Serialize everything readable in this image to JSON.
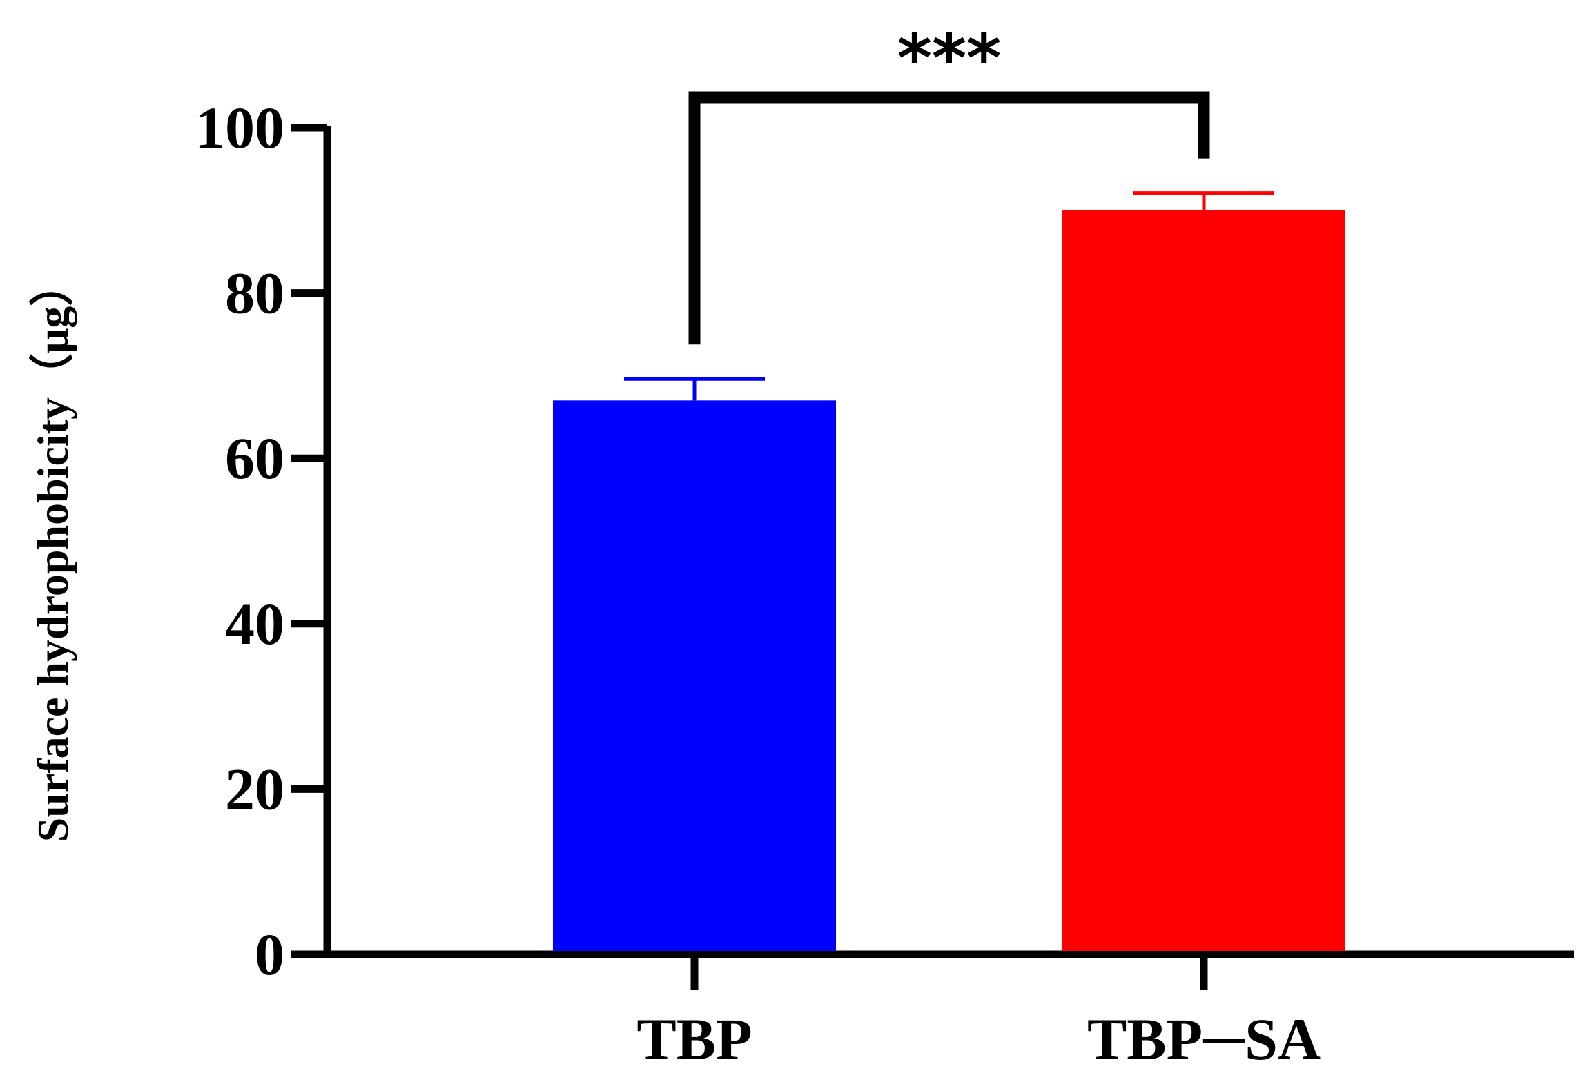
{
  "chart_data": {
    "type": "bar",
    "title": "",
    "xlabel": "",
    "ylabel": "Surface hydrophobicity（μg）",
    "ylim": [
      0,
      100
    ],
    "yticks": [
      "0",
      "20",
      "40",
      "60",
      "80",
      "100"
    ],
    "ytick_values": [
      0,
      20,
      40,
      60,
      80,
      100
    ],
    "categories": [
      "TBP",
      "TBP─SA"
    ],
    "values": [
      67,
      90
    ],
    "errors": [
      2.6,
      2.1
    ],
    "colors": [
      "#0000ff",
      "#ff0000"
    ],
    "grid": false,
    "legend": "none",
    "significance": {
      "label": "***",
      "between": [
        0,
        1
      ]
    }
  }
}
